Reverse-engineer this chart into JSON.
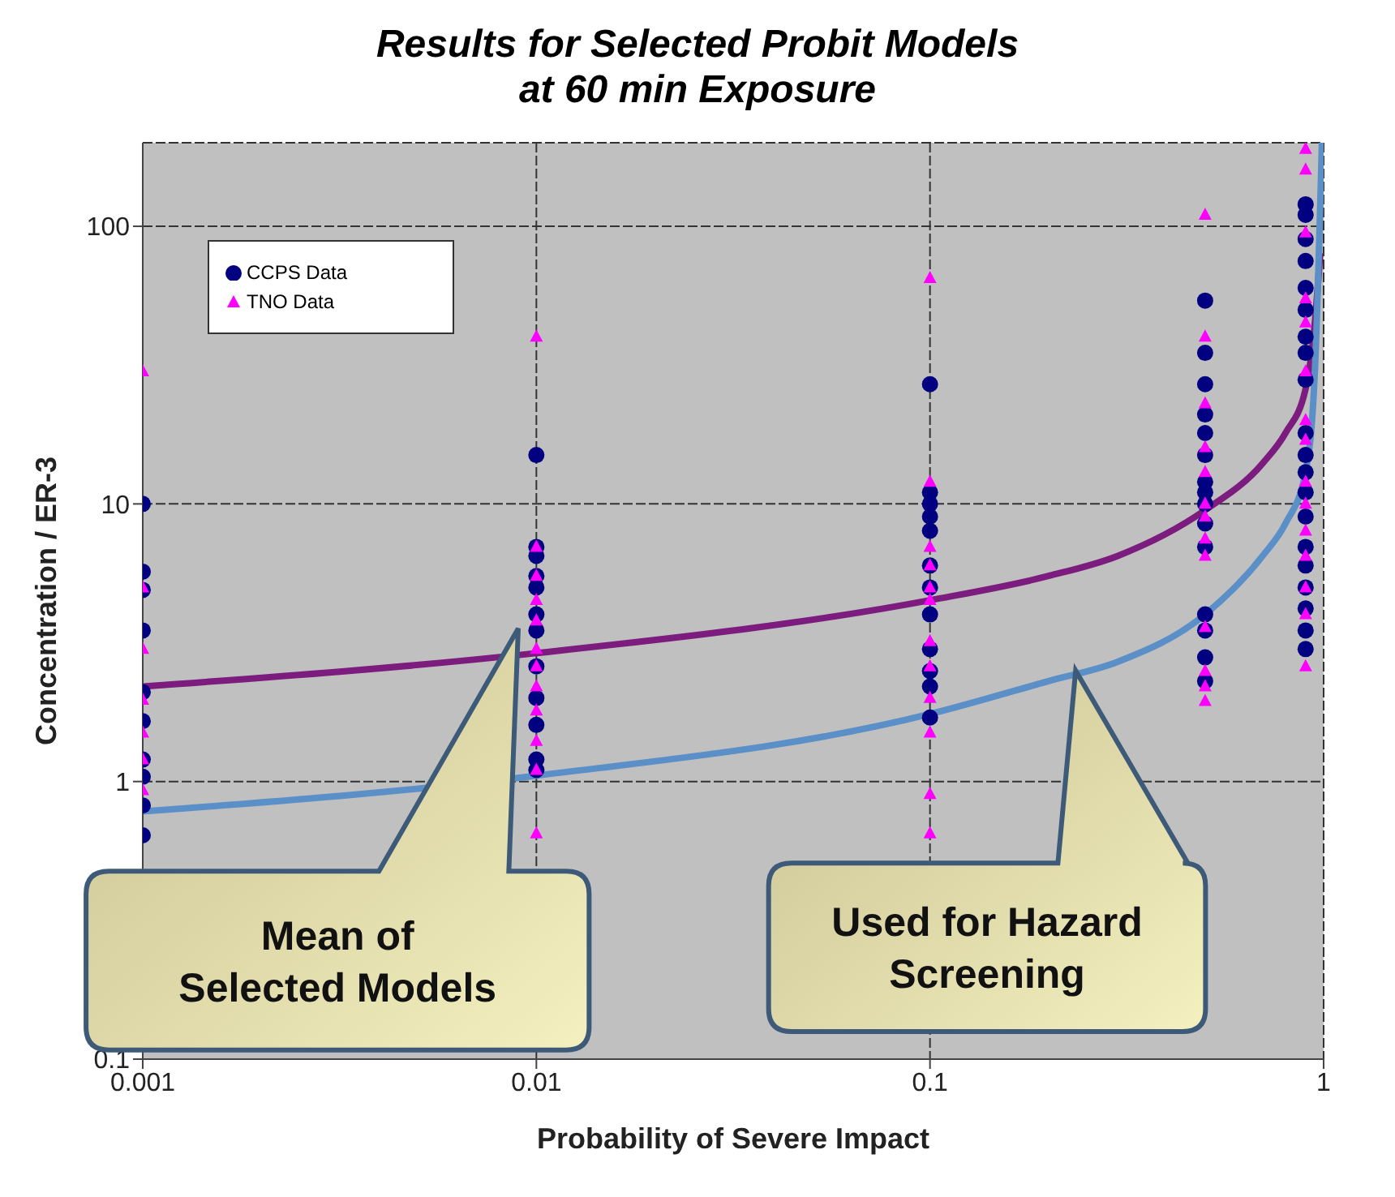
{
  "chart_data": {
    "type": "scatter",
    "title": "Results for Selected Probit Models\nat 60 min Exposure",
    "xlabel": "Probability of Severe Impact",
    "ylabel": "Concentration / ER-3",
    "log": "xy",
    "grid": true,
    "legend": "top left",
    "xlim": [
      0.001,
      1
    ],
    "xticks": [
      0.001,
      0.01,
      0.1,
      1
    ],
    "ylim": [
      0.1,
      200
    ],
    "yticks": [
      0.1,
      1,
      10,
      100
    ],
    "series": [
      {
        "name": "CCPS Data",
        "color": "#000080",
        "marker": "circle",
        "x": [
          0.001,
          0.001,
          0.001,
          0.001,
          0.001,
          0.001,
          0.001,
          0.001,
          0.001,
          0.001,
          0.01,
          0.01,
          0.01,
          0.01,
          0.01,
          0.01,
          0.01,
          0.01,
          0.01,
          0.01,
          0.01,
          0.01,
          0.1,
          0.1,
          0.1,
          0.1,
          0.1,
          0.1,
          0.1,
          0.1,
          0.1,
          0.1,
          0.1,
          0.1,
          0.5,
          0.5,
          0.5,
          0.5,
          0.5,
          0.5,
          0.5,
          0.5,
          0.5,
          0.5,
          0.5,
          0.5,
          0.5,
          0.5,
          0.5,
          0.9,
          0.9,
          0.9,
          0.9,
          0.9,
          0.9,
          0.9,
          0.9,
          0.9,
          0.9,
          0.9,
          0.9,
          0.9,
          0.9,
          0.9,
          0.9,
          0.9,
          0.9,
          0.9,
          0.9
        ],
        "values": [
          10,
          5.7,
          4.9,
          3.5,
          2.1,
          1.65,
          1.2,
          1.04,
          0.82,
          0.64,
          15,
          7,
          6.5,
          5.5,
          5,
          4,
          3.5,
          2.6,
          2,
          1.6,
          1.2,
          1.1,
          27,
          11,
          10,
          9,
          8,
          6,
          5,
          4,
          3,
          2.5,
          2.2,
          1.7,
          54,
          35,
          27,
          21,
          18,
          15,
          12,
          11,
          10,
          8.5,
          7,
          4,
          3.5,
          2.8,
          2.3,
          120,
          110,
          90,
          75,
          60,
          50,
          40,
          35,
          28,
          18,
          15,
          13,
          11,
          9,
          7,
          6,
          5,
          4.2,
          3.5,
          3
        ]
      },
      {
        "name": "TNO Data",
        "color": "#ff00ff",
        "marker": "triangle",
        "x": [
          0.001,
          0.001,
          0.001,
          0.001,
          0.001,
          0.001,
          0.001,
          0.01,
          0.01,
          0.01,
          0.01,
          0.01,
          0.01,
          0.01,
          0.01,
          0.01,
          0.01,
          0.01,
          0.01,
          0.1,
          0.1,
          0.1,
          0.1,
          0.1,
          0.1,
          0.1,
          0.1,
          0.1,
          0.1,
          0.1,
          0.1,
          0.5,
          0.5,
          0.5,
          0.5,
          0.5,
          0.5,
          0.5,
          0.5,
          0.5,
          0.5,
          0.5,
          0.5,
          0.5,
          0.9,
          0.9,
          0.9,
          0.9,
          0.9,
          0.9,
          0.9,
          0.9,
          0.9,
          0.9,
          0.9,
          0.9,
          0.9,
          0.9,
          0.9
        ],
        "values": [
          30,
          5,
          3,
          1.97,
          1.5,
          1.2,
          0.93,
          40,
          7,
          5.5,
          4.5,
          3.8,
          3,
          2.6,
          2.2,
          1.8,
          1.4,
          1.1,
          0.65,
          65,
          12,
          7,
          6,
          5,
          4.5,
          3.2,
          2.6,
          2,
          1.5,
          0.9,
          0.65,
          110,
          40,
          23,
          16,
          13,
          10,
          9,
          7.5,
          6.5,
          3.6,
          2.5,
          2.2,
          1.95,
          190,
          160,
          95,
          55,
          45,
          30,
          20,
          17,
          12,
          10,
          8,
          6.5,
          5,
          4,
          2.6
        ]
      },
      {
        "type": "line",
        "color": "#7b1c7e",
        "marker": "none",
        "line_style": "solid",
        "x": [
          0.001,
          0.01,
          0.1,
          0.2,
          0.3,
          0.5,
          0.7,
          0.8,
          0.9,
          0.95,
          0.98
        ],
        "values": [
          2.2,
          2.9,
          4.5,
          5.5,
          6.5,
          9.5,
          14,
          18,
          26,
          45,
          80
        ]
      },
      {
        "type": "line",
        "color": "#5b8fc7",
        "marker": "none",
        "line_style": "solid",
        "x": [
          0.001,
          0.01,
          0.1,
          0.2,
          0.3,
          0.5,
          0.7,
          0.8,
          0.9,
          0.95,
          0.99
        ],
        "values": [
          0.78,
          1.05,
          1.75,
          2.3,
          2.7,
          4,
          6.5,
          8.5,
          13,
          30,
          200
        ]
      }
    ],
    "annotations": [
      "Mean of\nSelected Models",
      "Used for Hazard\nScreening"
    ]
  }
}
